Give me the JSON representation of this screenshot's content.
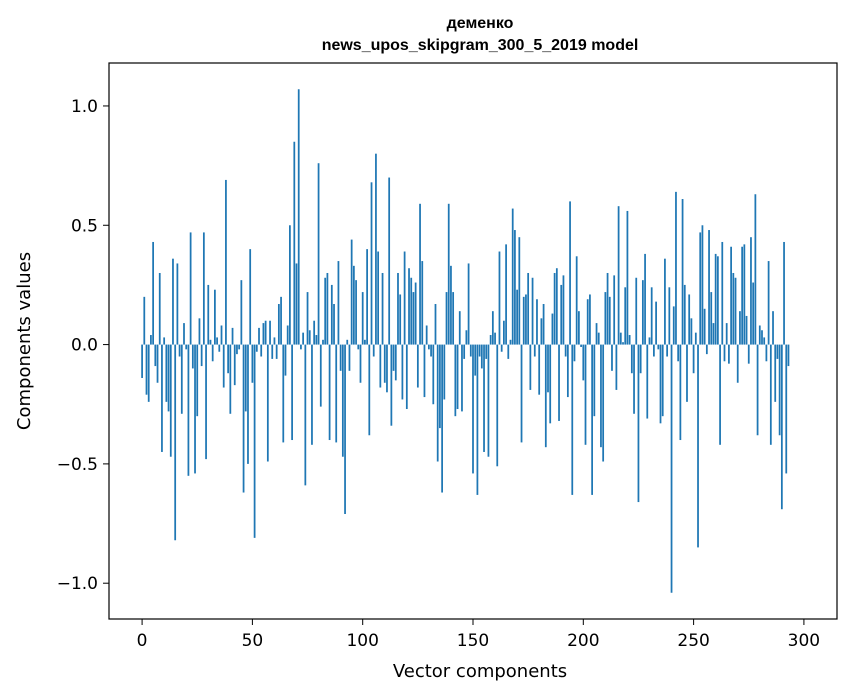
{
  "chart_data": {
    "type": "bar",
    "title": "деменко",
    "subtitle": "news_upos_skipgram_300_5_2019 model",
    "xlabel": "Vector components",
    "ylabel": "Components values",
    "xlim": [
      -15,
      315
    ],
    "ylim": [
      -1.15,
      1.18
    ],
    "xticks": [
      0,
      50,
      100,
      150,
      200,
      250,
      300
    ],
    "yticks": [
      -1.0,
      -0.5,
      0.0,
      0.5,
      1.0
    ],
    "ytick_labels": [
      "−1.0",
      "−0.5",
      "0.0",
      "0.5",
      "1.0"
    ],
    "bar_color": "#1f77b4",
    "grid": false,
    "legend": "none",
    "series": [
      {
        "values": [
          -0.14,
          0.2,
          -0.21,
          -0.24,
          0.04,
          0.43,
          -0.09,
          -0.16,
          0.3,
          -0.45,
          0.03,
          -0.24,
          -0.28,
          -0.47,
          0.36,
          -0.82,
          0.34,
          -0.05,
          -0.29,
          0.09,
          -0.02,
          -0.55,
          0.47,
          -0.1,
          -0.54,
          -0.3,
          0.11,
          -0.09,
          0.47,
          -0.48,
          0.25,
          0.02,
          -0.07,
          0.23,
          0.03,
          -0.03,
          0.08,
          -0.18,
          0.69,
          -0.12,
          -0.29,
          0.07,
          -0.17,
          -0.04,
          -0.02,
          0.27,
          -0.62,
          -0.28,
          -0.5,
          0.4,
          -0.16,
          -0.81,
          -0.03,
          0.07,
          -0.05,
          0.09,
          0.1,
          -0.49,
          0.1,
          -0.06,
          0.03,
          -0.06,
          0.17,
          0.2,
          -0.41,
          -0.13,
          0.08,
          0.5,
          -0.4,
          0.85,
          0.34,
          1.07,
          -0.02,
          0.05,
          -0.59,
          0.22,
          0.06,
          -0.42,
          0.1,
          0.04,
          0.76,
          -0.26,
          0.02,
          0.28,
          0.3,
          -0.4,
          0.25,
          0.17,
          -0.41,
          0.35,
          -0.11,
          -0.47,
          -0.71,
          0.02,
          -0.11,
          0.44,
          0.33,
          0.27,
          -0.02,
          -0.16,
          0.22,
          0.02,
          0.4,
          -0.38,
          0.68,
          -0.05,
          0.8,
          0.39,
          -0.18,
          0.3,
          -0.16,
          -0.2,
          0.7,
          -0.34,
          -0.11,
          -0.15,
          0.3,
          0.21,
          -0.23,
          0.39,
          -0.27,
          0.32,
          0.28,
          0.22,
          0.26,
          -0.18,
          0.59,
          0.35,
          -0.22,
          0.08,
          -0.02,
          -0.05,
          -0.25,
          0.17,
          -0.49,
          -0.35,
          -0.62,
          -0.23,
          0.22,
          0.59,
          0.33,
          0.22,
          -0.3,
          -0.27,
          0.14,
          -0.28,
          -0.06,
          0.06,
          0.34,
          -0.05,
          -0.54,
          -0.13,
          -0.63,
          -0.05,
          -0.1,
          -0.45,
          -0.06,
          -0.47,
          0.04,
          0.14,
          0.05,
          -0.51,
          0.39,
          -0.03,
          0.1,
          0.42,
          -0.06,
          0.02,
          0.57,
          0.48,
          0.23,
          0.45,
          -0.41,
          0.2,
          0.21,
          0.3,
          -0.19,
          0.28,
          -0.05,
          0.19,
          -0.21,
          0.11,
          0.17,
          -0.43,
          -0.2,
          -0.33,
          0.13,
          0.3,
          0.32,
          -0.32,
          0.25,
          0.29,
          -0.05,
          -0.22,
          0.6,
          -0.63,
          -0.07,
          0.37,
          0.14,
          -0.01,
          -0.15,
          -0.42,
          0.19,
          0.21,
          -0.63,
          -0.3,
          0.09,
          0.05,
          -0.43,
          -0.49,
          0.22,
          0.3,
          0.2,
          -0.11,
          0.29,
          -0.19,
          0.58,
          0.05,
          0.01,
          0.24,
          0.56,
          0.04,
          -0.12,
          -0.29,
          0.28,
          -0.66,
          -0.12,
          0.27,
          0.38,
          -0.31,
          0.03,
          0.24,
          -0.05,
          0.18,
          -0.02,
          -0.33,
          -0.3,
          0.36,
          -0.05,
          0.24,
          -1.04,
          0.16,
          0.64,
          -0.07,
          -0.4,
          0.61,
          0.25,
          -0.24,
          0.21,
          0.11,
          -0.12,
          0.05,
          -0.85,
          0.47,
          0.5,
          0.15,
          -0.04,
          0.48,
          0.22,
          0.09,
          0.38,
          0.37,
          -0.42,
          0.43,
          -0.07,
          0.09,
          -0.08,
          0.41,
          0.3,
          0.28,
          -0.16,
          0.14,
          0.41,
          0.42,
          0.12,
          -0.08,
          0.45,
          0.26,
          0.63,
          -0.38,
          0.08,
          0.06,
          0.03,
          -0.07,
          0.35,
          -0.42,
          0.14,
          -0.24,
          -0.06,
          -0.38,
          -0.69,
          0.43,
          -0.54,
          -0.09
        ]
      }
    ]
  }
}
